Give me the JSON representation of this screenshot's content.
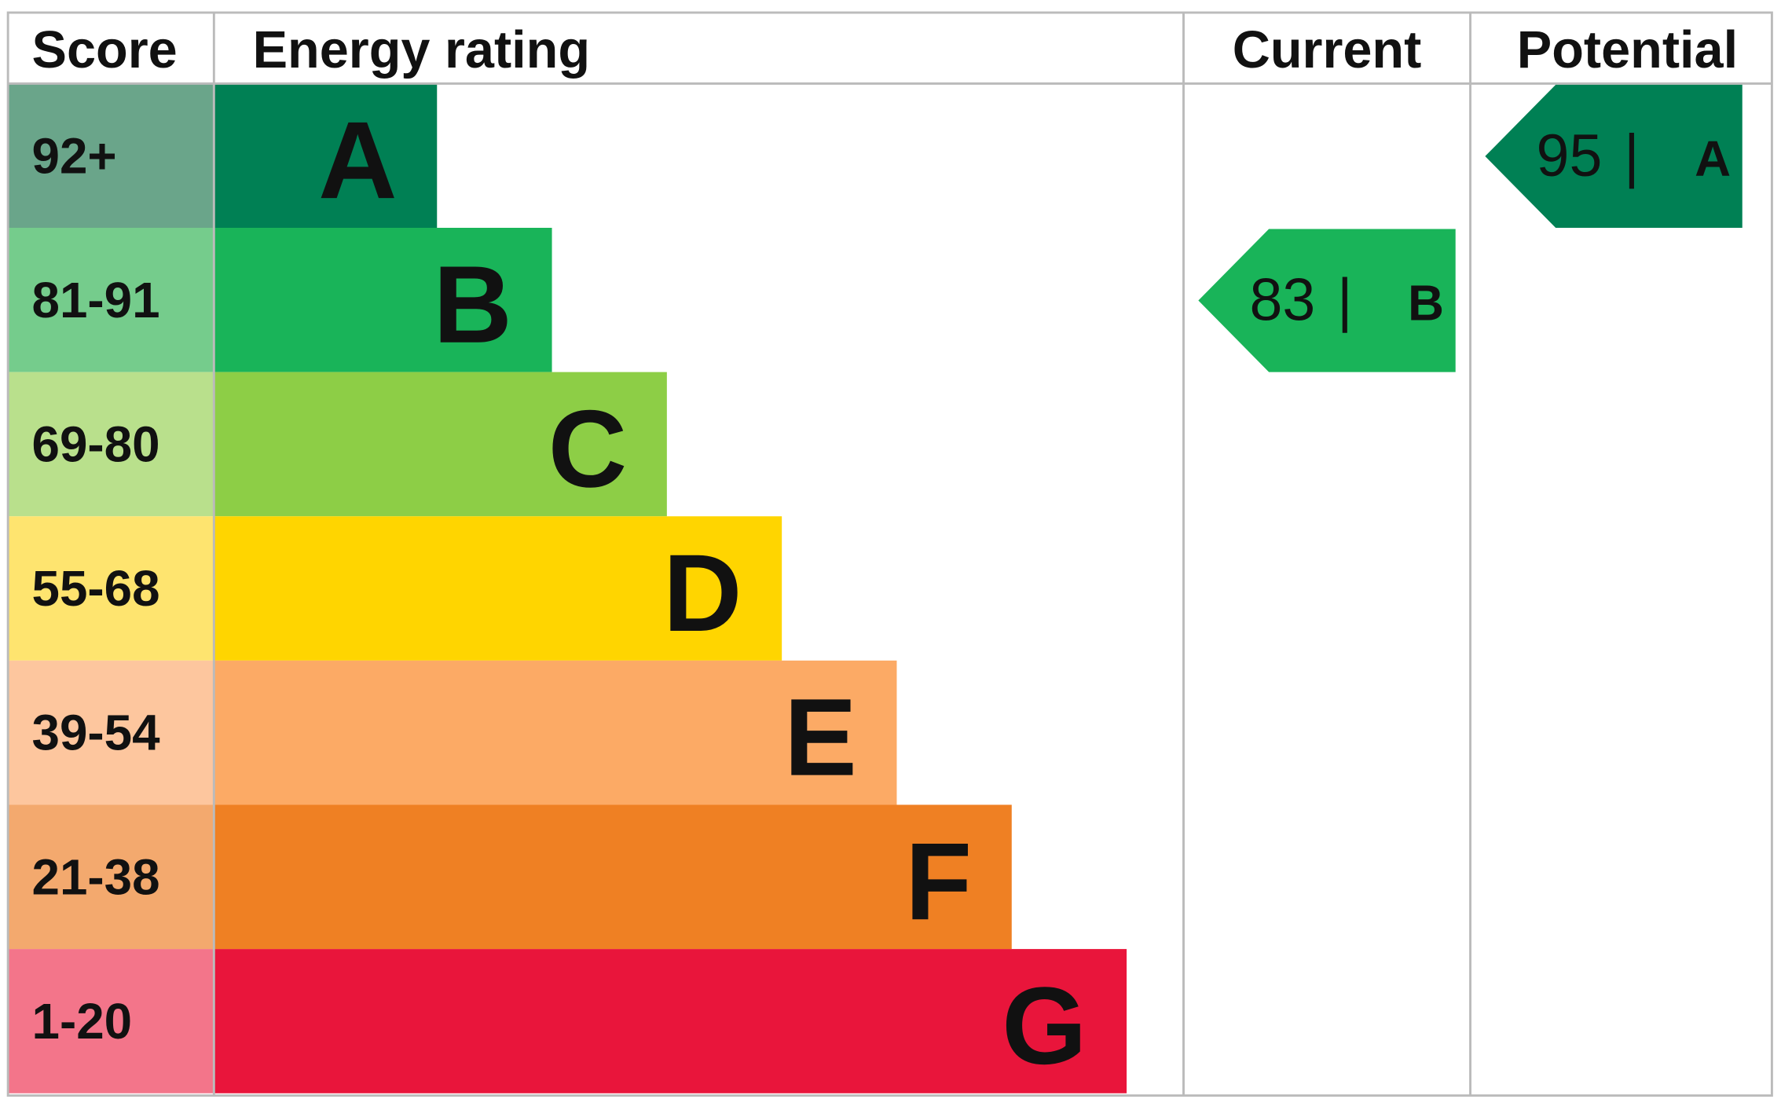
{
  "header": [
    "Score",
    "Energy rating",
    "Current",
    "Potential"
  ],
  "bands": [
    {
      "score": "92+",
      "rating": "A",
      "score_color": "#6aa58a",
      "bar_color": "#008054"
    },
    {
      "score": "81-91",
      "rating": "B",
      "score_color": "#75cc8c",
      "bar_color": "#19b459"
    },
    {
      "score": "69-80",
      "rating": "C",
      "score_color": "#b9e08c",
      "bar_color": "#8dce46"
    },
    {
      "score": "55-68",
      "rating": "D",
      "score_color": "#fee46f",
      "bar_color": "#ffd500"
    },
    {
      "score": "39-54",
      "rating": "E",
      "score_color": "#fdc69e",
      "bar_color": "#fcaa65"
    },
    {
      "score": "21-38",
      "rating": "F",
      "score_color": "#f3a96e",
      "bar_color": "#ef8023"
    },
    {
      "score": "1-20",
      "rating": "G",
      "score_color": "#f3758a",
      "bar_color": "#e9153b"
    }
  ],
  "current": {
    "score": 83,
    "separator": "|",
    "rating": "B"
  },
  "potential": {
    "score": 95,
    "separator": "|",
    "rating": "A"
  }
}
